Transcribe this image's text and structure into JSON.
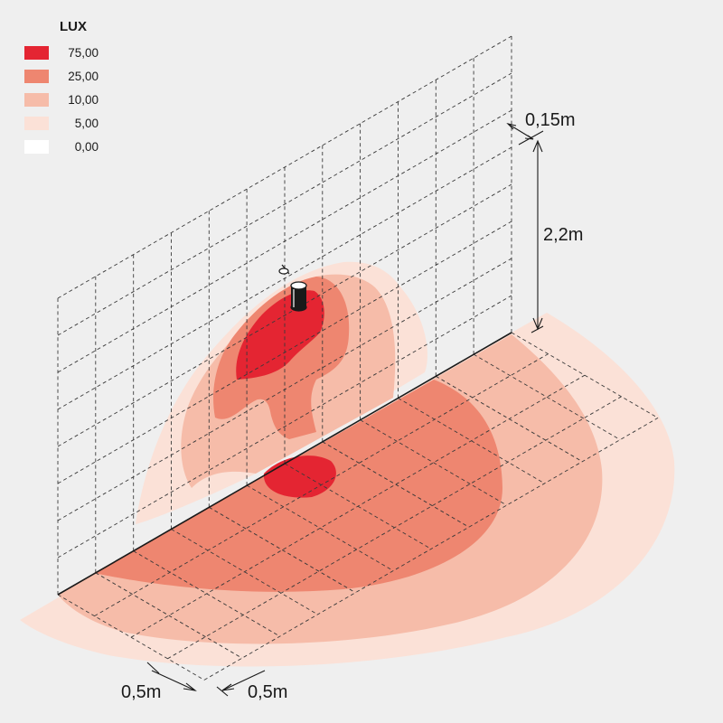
{
  "legend": {
    "title": "LUX",
    "items": [
      {
        "value": "75,00",
        "color": "#e42532"
      },
      {
        "value": "25,00",
        "color": "#ee8670"
      },
      {
        "value": "10,00",
        "color": "#f6bca9"
      },
      {
        "value": "5,00",
        "color": "#fbe1d7"
      },
      {
        "value": "0,00",
        "color": "#ffffff"
      }
    ]
  },
  "dimensions": {
    "offset": "0,15m",
    "height": "2,2m",
    "grid_step_a": "0,5m",
    "grid_step_b": "0,5m"
  },
  "colors": {
    "background": "#efefef",
    "grid": "#3a3a3a"
  },
  "fixture": {
    "icon": "wall-luminaire-icon"
  }
}
